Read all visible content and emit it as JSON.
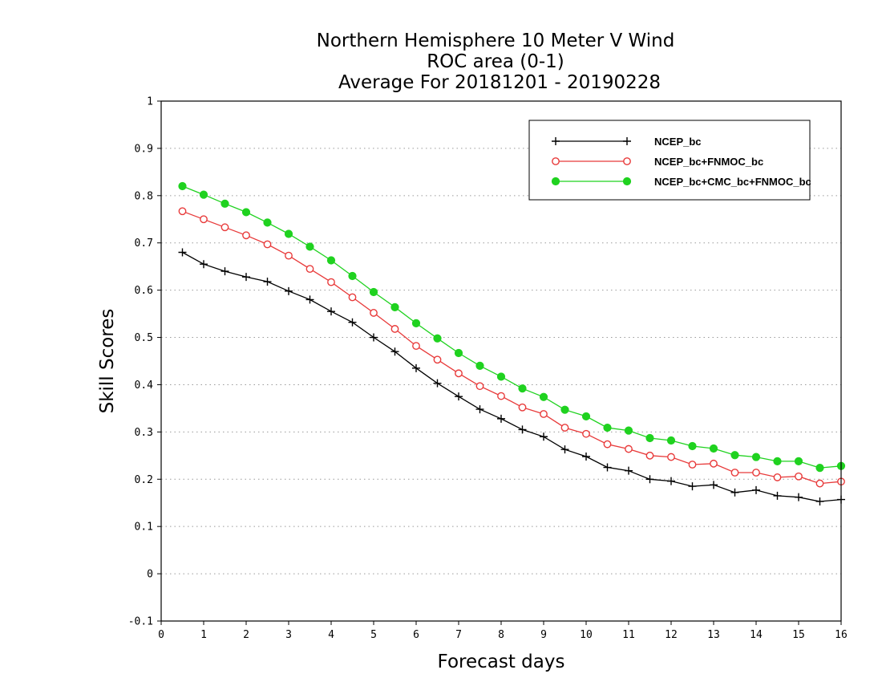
{
  "chart_data": {
    "type": "line",
    "title": "Northern Hemisphere 10 Meter V Wind",
    "subtitle": "ROC area (0-1)",
    "subtitle2": "Average For 20181201 - 20190228",
    "xlabel": "Forecast days",
    "ylabel": "Skill Scores",
    "xlim": [
      0,
      16
    ],
    "ylim": [
      -0.1,
      1
    ],
    "xticks": [
      "0",
      "1",
      "2",
      "3",
      "4",
      "5",
      "6",
      "7",
      "8",
      "9",
      "10",
      "11",
      "12",
      "13",
      "14",
      "15",
      "16"
    ],
    "yticks": [
      "-0.1",
      "0",
      "0.1",
      "0.2",
      "0.3",
      "0.4",
      "0.5",
      "0.6",
      "0.7",
      "0.8",
      "0.9",
      "1"
    ],
    "grid": true,
    "legend_position": "top-right",
    "x": [
      0.5,
      1,
      1.5,
      2,
      2.5,
      3,
      3.5,
      4,
      4.5,
      5,
      5.5,
      6,
      6.5,
      7,
      7.5,
      8,
      8.5,
      9,
      9.5,
      10,
      10.5,
      11,
      11.5,
      12,
      12.5,
      13,
      13.5,
      14,
      14.5,
      15,
      15.5,
      16
    ],
    "series": [
      {
        "name": "NCEP_bc",
        "color": "#000000",
        "marker": "plus",
        "values": [
          0.68,
          0.655,
          0.64,
          0.628,
          0.618,
          0.598,
          0.58,
          0.555,
          0.532,
          0.5,
          0.47,
          0.435,
          0.403,
          0.375,
          0.348,
          0.328,
          0.305,
          0.29,
          0.263,
          0.248,
          0.225,
          0.218,
          0.2,
          0.196,
          0.185,
          0.188,
          0.172,
          0.177,
          0.165,
          0.162,
          0.153,
          0.157
        ]
      },
      {
        "name": "NCEP_bc+FNMOC_bc",
        "color": "#e83a3a",
        "marker": "open-circle",
        "values": [
          0.767,
          0.75,
          0.733,
          0.716,
          0.697,
          0.673,
          0.645,
          0.617,
          0.585,
          0.552,
          0.518,
          0.482,
          0.453,
          0.424,
          0.397,
          0.376,
          0.352,
          0.338,
          0.309,
          0.296,
          0.274,
          0.264,
          0.25,
          0.247,
          0.231,
          0.233,
          0.214,
          0.214,
          0.204,
          0.206,
          0.191,
          0.195
        ]
      },
      {
        "name": "NCEP_bc+CMC_bc+FNMOC_bc",
        "color": "#1fd21f",
        "marker": "filled-circle",
        "values": [
          0.82,
          0.802,
          0.783,
          0.765,
          0.743,
          0.719,
          0.692,
          0.663,
          0.63,
          0.596,
          0.564,
          0.53,
          0.498,
          0.467,
          0.44,
          0.417,
          0.392,
          0.374,
          0.347,
          0.333,
          0.309,
          0.303,
          0.287,
          0.282,
          0.27,
          0.265,
          0.251,
          0.247,
          0.238,
          0.238,
          0.224,
          0.228
        ]
      }
    ]
  }
}
